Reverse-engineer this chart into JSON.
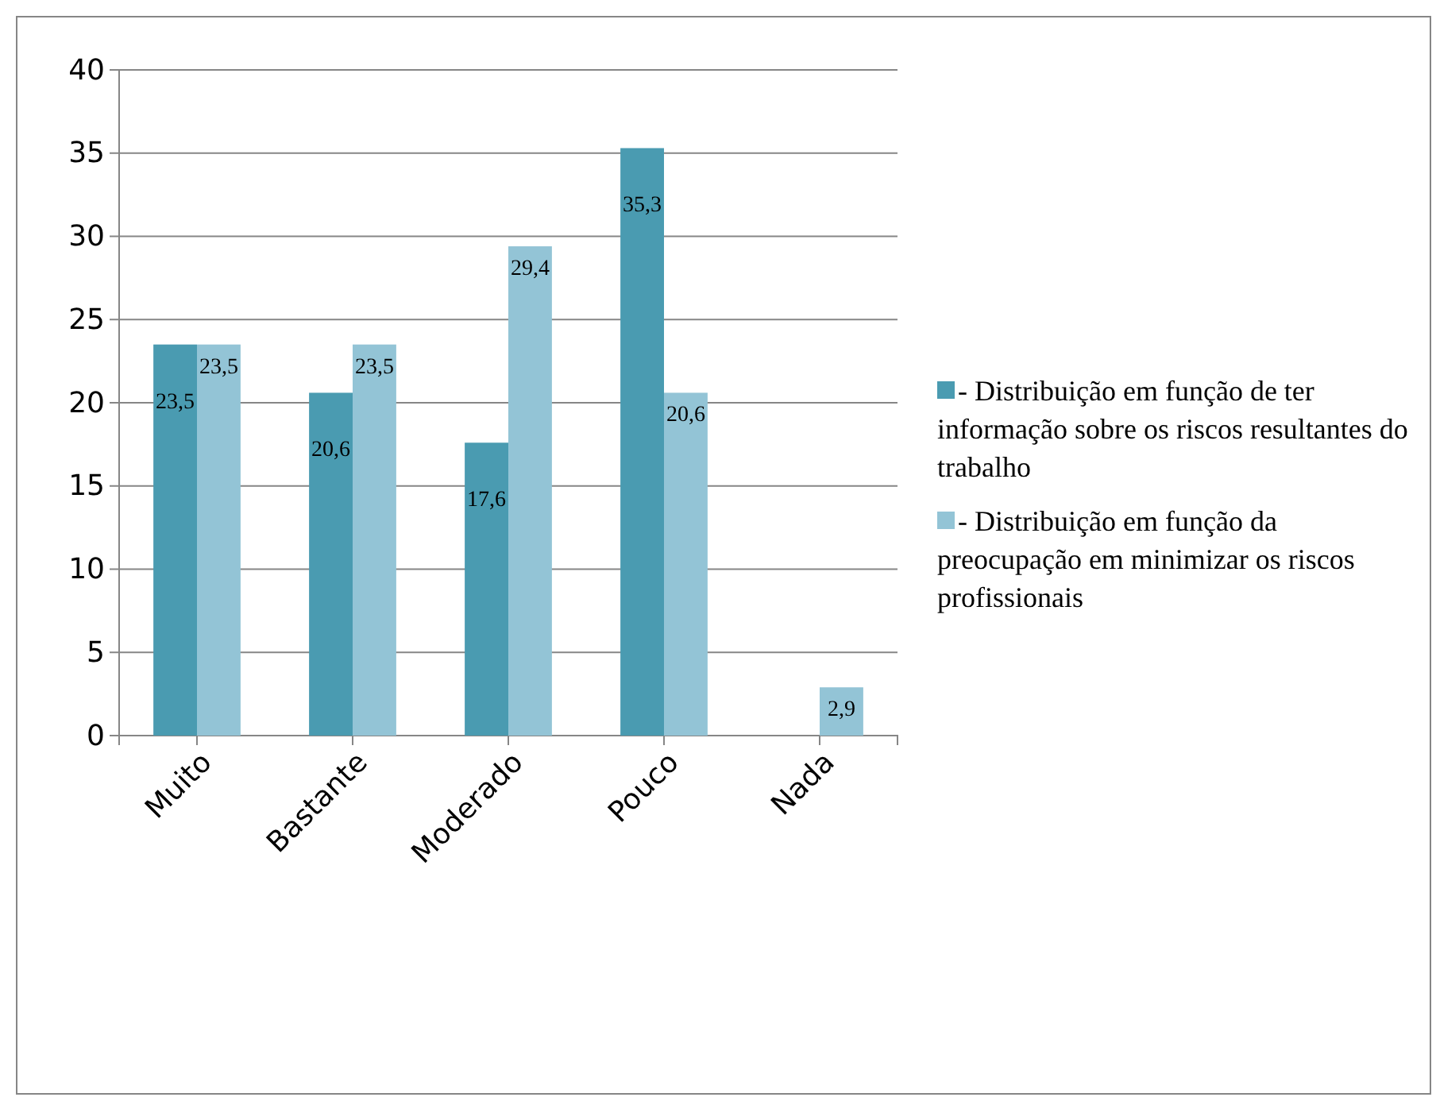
{
  "chart_data": {
    "type": "bar",
    "categories": [
      "Muito",
      "Bastante",
      "Moderado",
      "Pouco",
      "Nada"
    ],
    "series": [
      {
        "name": "- Distribuição em função de ter informação sobre os riscos resultantes do trabalho",
        "color": "#4a9bb1",
        "values": [
          23.5,
          20.6,
          17.6,
          35.3,
          null
        ],
        "value_labels": [
          "23,5",
          "20,6",
          "17,6",
          "35,3",
          null
        ]
      },
      {
        "name": "- Distribuição em função da preocupação em minimizar os riscos profissionais",
        "color": "#93c4d6",
        "values": [
          23.5,
          23.5,
          29.4,
          20.6,
          2.9
        ],
        "value_labels": [
          "23,5",
          "23,5",
          "29,4",
          "20,6",
          "2,9"
        ]
      }
    ],
    "ylim": [
      0,
      40
    ],
    "yticks": [
      0,
      5,
      10,
      15,
      20,
      25,
      30,
      35,
      40
    ],
    "grid": "y",
    "legend": "right"
  }
}
